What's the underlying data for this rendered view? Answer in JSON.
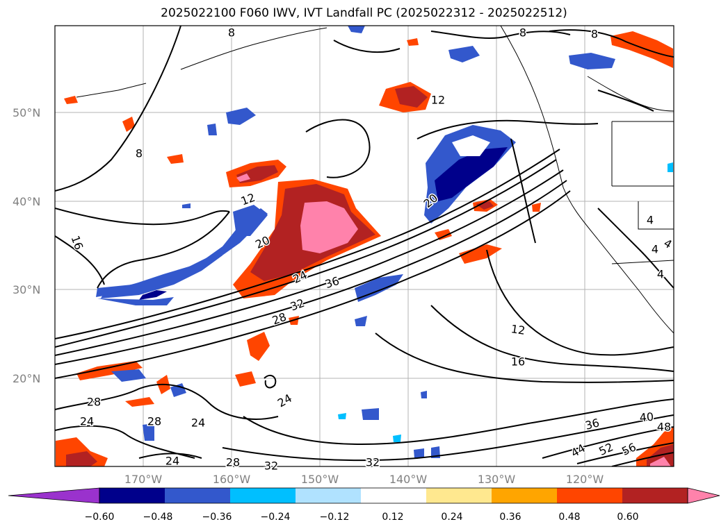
{
  "title": "2025022100 F060 IWV, IVT Landfall PC (2025022312 - 2025022512)",
  "lat_labels": [
    "50°N",
    "40°N",
    "30°N",
    "20°N"
  ],
  "lon_labels": [
    "170°W",
    "160°W",
    "150°W",
    "140°W",
    "130°W",
    "120°W"
  ],
  "colorbar": {
    "ticks": [
      "−0.60",
      "−0.48",
      "−0.36",
      "−0.24",
      "−0.12",
      "0.12",
      "0.24",
      "0.36",
      "0.48",
      "0.60"
    ],
    "colors": [
      "#9a32cd",
      "#00008b",
      "#3358cc",
      "#00bfff",
      "#b0e2ff",
      "#ffffff",
      "#ffe88f",
      "#ffa500",
      "#ff4500",
      "#b22222",
      "#ff82ab"
    ],
    "extend": "both"
  },
  "contour_labels": [
    "8",
    "8",
    "8",
    "8",
    "12",
    "12",
    "12",
    "16",
    "16",
    "20",
    "20",
    "24",
    "24",
    "24",
    "24",
    "24",
    "28",
    "28",
    "28",
    "28",
    "32",
    "32",
    "32",
    "36",
    "36",
    "40",
    "44",
    "48",
    "52",
    "56",
    "4",
    "4",
    "4",
    "4"
  ],
  "colors": {
    "contour": "#000000",
    "grid": "#b3b3b3",
    "coastline": "#000000",
    "frame": "#000000"
  }
}
